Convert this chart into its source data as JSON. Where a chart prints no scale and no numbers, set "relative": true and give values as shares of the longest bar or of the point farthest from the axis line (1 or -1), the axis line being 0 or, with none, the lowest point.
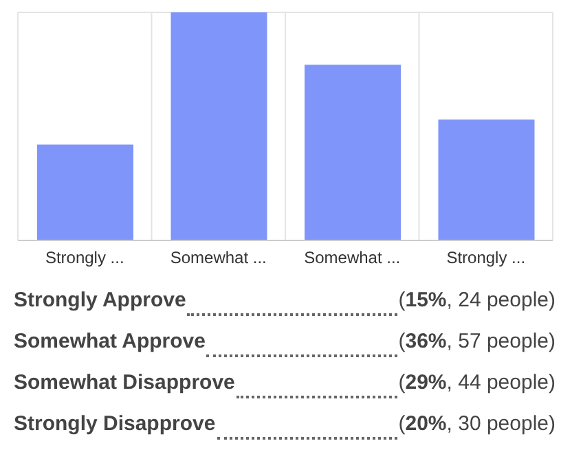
{
  "chart_data": {
    "type": "bar",
    "categories": [
      "Strongly ...",
      "Somewhat ...",
      "Somewhat ...",
      "Strongly ..."
    ],
    "values": [
      0.42,
      1,
      0.77,
      0.53
    ],
    "relative": true,
    "color": "#7f95f9",
    "grid": true,
    "annotations": [
      "Strongly Approve",
      "(15%, 24 people)",
      "Somewhat Approve",
      "(36%, 57 people)",
      "Somewhat Disapprove",
      "(29%, 44 people)",
      "Strongly Disapprove",
      "(20%, 30 people)"
    ]
  }
}
